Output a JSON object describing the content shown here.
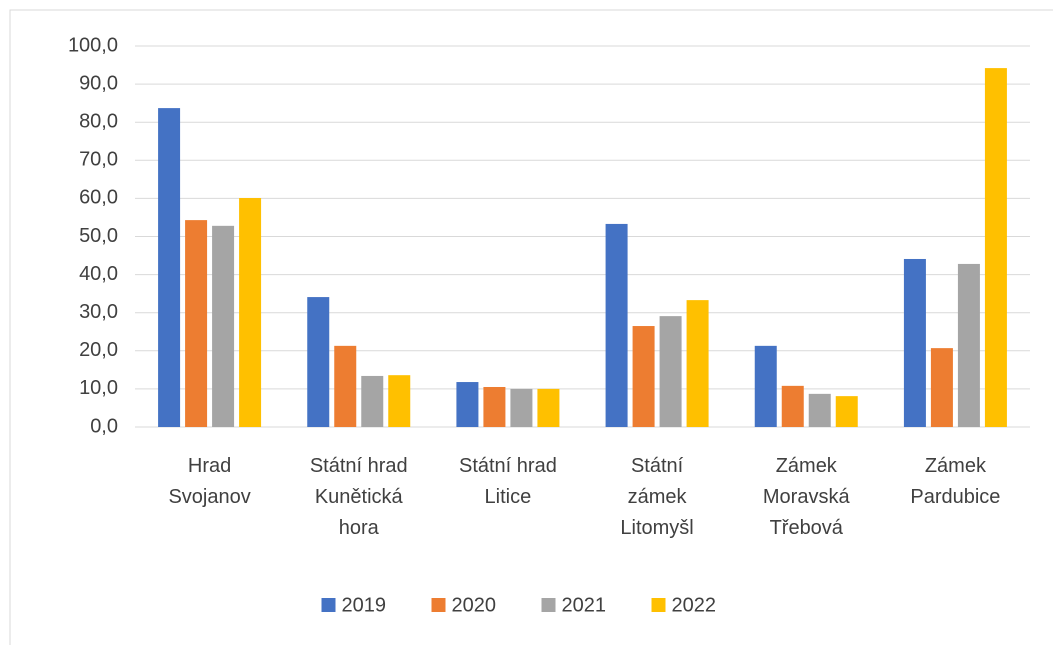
{
  "chart_data": {
    "type": "bar",
    "categories": [
      "Hrad Svojanov",
      "Státní hrad Kunětická hora",
      "Státní hrad Litice",
      "Státní zámek Litomyšl",
      "Zámek Moravská Třebová",
      "Zámek Pardubice"
    ],
    "series": [
      {
        "name": "2019",
        "color": "#4472c4",
        "values": [
          83.7,
          34.1,
          11.8,
          53.3,
          21.3,
          44.1
        ]
      },
      {
        "name": "2020",
        "color": "#ed7d31",
        "values": [
          54.3,
          21.3,
          10.5,
          26.5,
          10.8,
          20.7
        ]
      },
      {
        "name": "2021",
        "color": "#a5a5a5",
        "values": [
          52.8,
          13.4,
          10.0,
          29.1,
          8.7,
          42.8
        ]
      },
      {
        "name": "2022",
        "color": "#ffc000",
        "values": [
          60.1,
          13.6,
          10.0,
          33.3,
          8.1,
          94.2
        ]
      }
    ],
    "ylim": [
      0,
      100
    ],
    "yticks": [
      {
        "value": 0,
        "label": "0,0"
      },
      {
        "value": 10,
        "label": "10,0"
      },
      {
        "value": 20,
        "label": "20,0"
      },
      {
        "value": 30,
        "label": "30,0"
      },
      {
        "value": 40,
        "label": "40,0"
      },
      {
        "value": 50,
        "label": "50,0"
      },
      {
        "value": 60,
        "label": "60,0"
      },
      {
        "value": 70,
        "label": "70,0"
      },
      {
        "value": 80,
        "label": "80,0"
      },
      {
        "value": 90,
        "label": "90,0"
      },
      {
        "value": 100,
        "label": "100,0"
      }
    ],
    "grid": true,
    "legend": "bottom"
  }
}
